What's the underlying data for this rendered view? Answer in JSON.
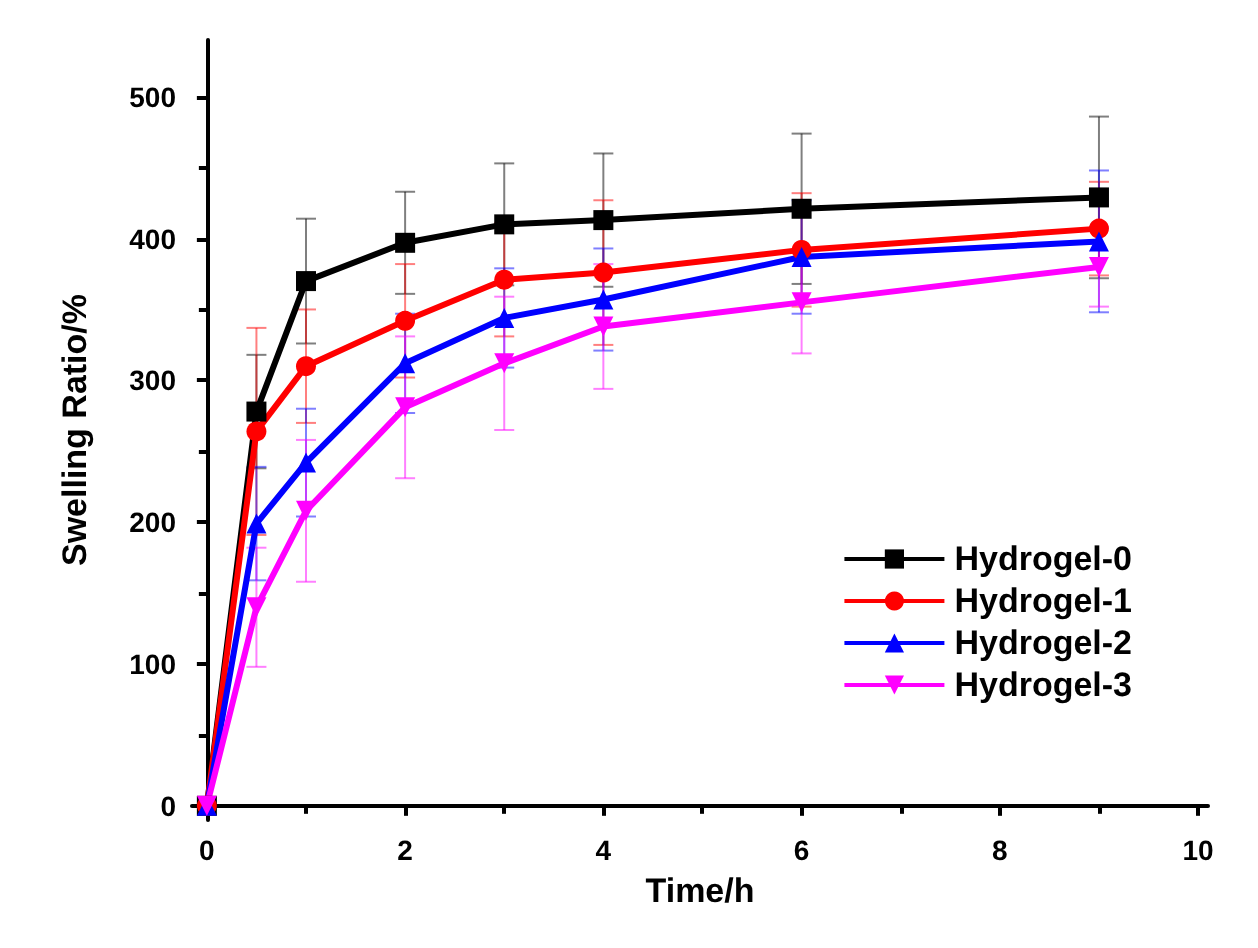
{
  "chart_data": {
    "type": "line",
    "xlabel": "Time/h",
    "ylabel": "Swelling Ratio/%",
    "x": [
      0,
      0.5,
      1,
      2,
      3,
      4,
      6,
      9
    ],
    "xlim": [
      -0.15,
      10.1
    ],
    "xticks": [
      0,
      2,
      4,
      6,
      8,
      10
    ],
    "ylim": [
      -10,
      540
    ],
    "yticks": [
      0,
      100,
      200,
      300,
      400,
      500
    ],
    "grid": false,
    "legend": "bottom right",
    "line_style": "solid",
    "series": [
      {
        "name": "Hydrogel-0",
        "color": "#000000",
        "marker": "square",
        "values": [
          0,
          278,
          370,
          397,
          410,
          413,
          421,
          429
        ],
        "errors": [
          null,
          40,
          44,
          36,
          43,
          47,
          53,
          57
        ]
      },
      {
        "name": "Hydrogel-1",
        "color": "#ff0000",
        "marker": "circle",
        "values": [
          0,
          264,
          310,
          342,
          371,
          376,
          392,
          407
        ],
        "errors": [
          null,
          73,
          40,
          40,
          40,
          51,
          40,
          33
        ]
      },
      {
        "name": "Hydrogel-2",
        "color": "#0000ff",
        "marker": "triangle",
        "values": [
          0,
          199,
          242,
          312,
          344,
          357,
          387,
          398
        ],
        "errors": [
          null,
          40,
          38,
          35,
          35,
          36,
          40,
          50
        ]
      },
      {
        "name": "Hydrogel-3",
        "color": "#ff00ff",
        "marker": "triangle_down",
        "values": [
          0,
          140,
          208,
          281,
          312,
          338,
          355,
          380
        ],
        "errors": [
          null,
          42,
          50,
          50,
          47,
          44,
          36,
          28
        ]
      }
    ]
  }
}
